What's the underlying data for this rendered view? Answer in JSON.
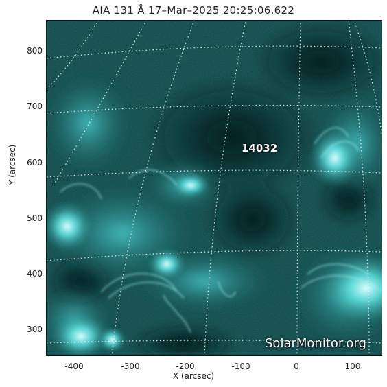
{
  "title": "AIA 131 Å 17–Mar–2025 20:25:06.622",
  "axes": {
    "xlabel": "X (arcsec)",
    "ylabel": "Y (arcsec)",
    "xticks": [
      "-400",
      "-300",
      "-200",
      "-100",
      "0",
      "100"
    ],
    "yticks": [
      "300",
      "400",
      "500",
      "600",
      "700",
      "800"
    ],
    "xlim": [
      -450,
      150
    ],
    "ylim": [
      255,
      855
    ]
  },
  "region_label": "14032",
  "watermark": "SolarMonitor.org",
  "colors": {
    "image_dark": "#062626",
    "image_mid": "#1f8c8c",
    "image_bright": "#c8ffff",
    "grid": "#ffffff"
  }
}
